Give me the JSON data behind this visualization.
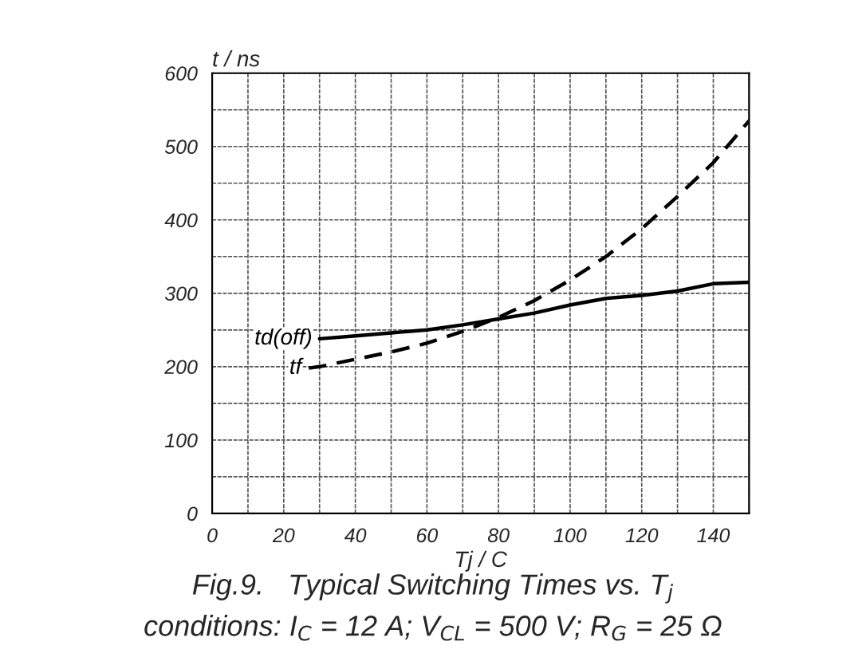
{
  "chart_data": {
    "type": "line",
    "title": "Fig.9.   Typical Switching Times vs. T$_{j}$",
    "subtitle": "conditions: I$_{C}$ = 12 A; V$_{CL}$ = 500 V; R$_{G}$ = 25 Ω",
    "xlabel": "Tj / C",
    "ylabel": "t / ns",
    "xlim": [
      0,
      150
    ],
    "ylim": [
      0,
      600
    ],
    "xticks": [
      0,
      {
        "value": 10,
        "label": null
      },
      20,
      {
        "value": 30,
        "label": null
      },
      40,
      {
        "value": 50,
        "label": null
      },
      60,
      {
        "value": 70,
        "label": null
      },
      80,
      {
        "value": 90,
        "label": null
      },
      100,
      {
        "value": 110,
        "label": null
      },
      120,
      {
        "value": 130,
        "label": null
      },
      140,
      {
        "value": 150,
        "label": null
      }
    ],
    "yticks": [
      0,
      {
        "value": 50,
        "label": null
      },
      100,
      {
        "value": 150,
        "label": null
      },
      200,
      {
        "value": 250,
        "label": null
      },
      300,
      {
        "value": 350,
        "label": null
      },
      400,
      {
        "value": 450,
        "label": null
      },
      500,
      {
        "value": 550,
        "label": null
      },
      600
    ],
    "grid": true,
    "series": [
      {
        "name": "td(off)",
        "color": "#000000",
        "line_style": "solid",
        "x": [
          30,
          40,
          50,
          60,
          70,
          80,
          90,
          100,
          110,
          120,
          130,
          140,
          150
        ],
        "values": [
          238,
          242,
          246,
          250,
          257,
          265,
          273,
          284,
          293,
          297,
          303,
          313,
          315
        ]
      },
      {
        "name": "tf",
        "color": "#000000",
        "line_style": "dashed",
        "x": [
          27,
          30,
          40,
          50,
          60,
          70,
          80,
          90,
          100,
          110,
          120,
          130,
          140,
          150
        ],
        "values": [
          198,
          200,
          210,
          220,
          232,
          248,
          267,
          290,
          318,
          350,
          388,
          432,
          478,
          535
        ]
      }
    ]
  }
}
